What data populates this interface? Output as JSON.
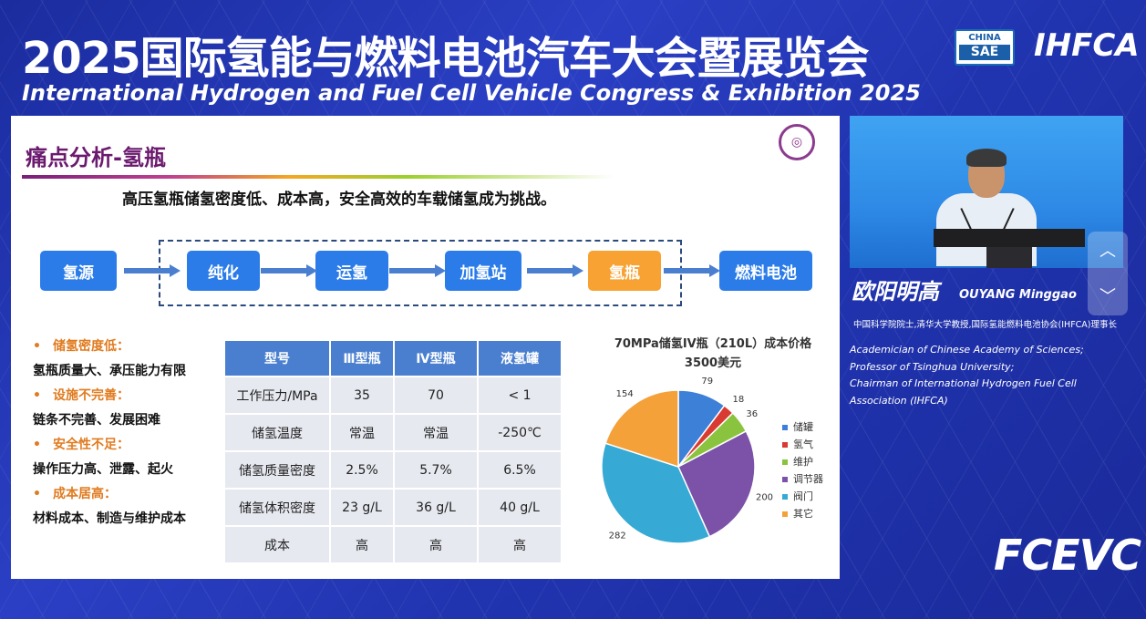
{
  "header": {
    "title_zh": "2025国际氢能与燃料电池汽车大会暨展览会",
    "title_en": "International Hydrogen and Fuel Cell Vehicle Congress & Exhibition 2025",
    "logo_sae_top": "CHINA",
    "logo_sae_bottom": "SAE",
    "logo_ihfca": "IHFCA"
  },
  "slide": {
    "title": "痛点分析-氢瓶",
    "subtitle": "高压氢瓶储氢密度低、成本高，安全高效的车载储氢成为挑战。",
    "flow": [
      "氢源",
      "纯化",
      "运氢",
      "加氢站",
      "氢瓶",
      "燃料电池"
    ],
    "issues": [
      {
        "heading": "储氢密度低：",
        "detail": "氢瓶质量大、承压能力有限"
      },
      {
        "heading": "设施不完善：",
        "detail": "链条不完善、发展困难"
      },
      {
        "heading": "安全性不足：",
        "detail": "操作压力高、泄露、起火"
      },
      {
        "heading": "成本居高：",
        "detail": "材料成本、制造与维护成本"
      }
    ],
    "table": {
      "headers": [
        "型号",
        "Ⅲ型瓶",
        "Ⅳ型瓶",
        "液氢罐"
      ],
      "rows": [
        [
          "工作压力/MPa",
          "35",
          "70",
          "< 1"
        ],
        [
          "储氢温度",
          "常温",
          "常温",
          "-250℃"
        ],
        [
          "储氢质量密度",
          "2.5%",
          "5.7%",
          "6.5%"
        ],
        [
          "储氢体积密度",
          "23 g/L",
          "36 g/L",
          "40 g/L"
        ],
        [
          "成本",
          "高",
          "高",
          "高"
        ]
      ]
    }
  },
  "chart_data": {
    "type": "pie",
    "title": "70MPa储氢IV瓶（210L）成本价格",
    "subtitle": "3500美元",
    "categories": [
      "储罐",
      "氢气",
      "维护",
      "调节器",
      "阀门",
      "其它"
    ],
    "values": [
      79,
      18,
      36,
      200,
      282,
      154
    ],
    "colors": [
      "#3d80d8",
      "#d93a32",
      "#8ac43f",
      "#7b52a8",
      "#36a9d4",
      "#f4a13a"
    ],
    "legend_position": "right"
  },
  "speaker": {
    "name_zh": "欧阳明高",
    "name_en": "OUYANG Minggao",
    "affiliation_zh": "中国科学院院士,清华大学教授,国际氢能燃料电池协会(IHFCA)理事长",
    "affiliation_en": [
      "Academician of Chinese Academy of Sciences;",
      "Professor of Tsinghua University;",
      "Chairman of International Hydrogen Fuel Cell",
      "Association (IHFCA)"
    ]
  },
  "controls": {
    "up_icon": "chevron-up-icon",
    "down_icon": "chevron-down-icon"
  },
  "footer": {
    "logo": "FCEVC"
  },
  "icons": {
    "university_logo": "tsinghua-seal-icon"
  }
}
